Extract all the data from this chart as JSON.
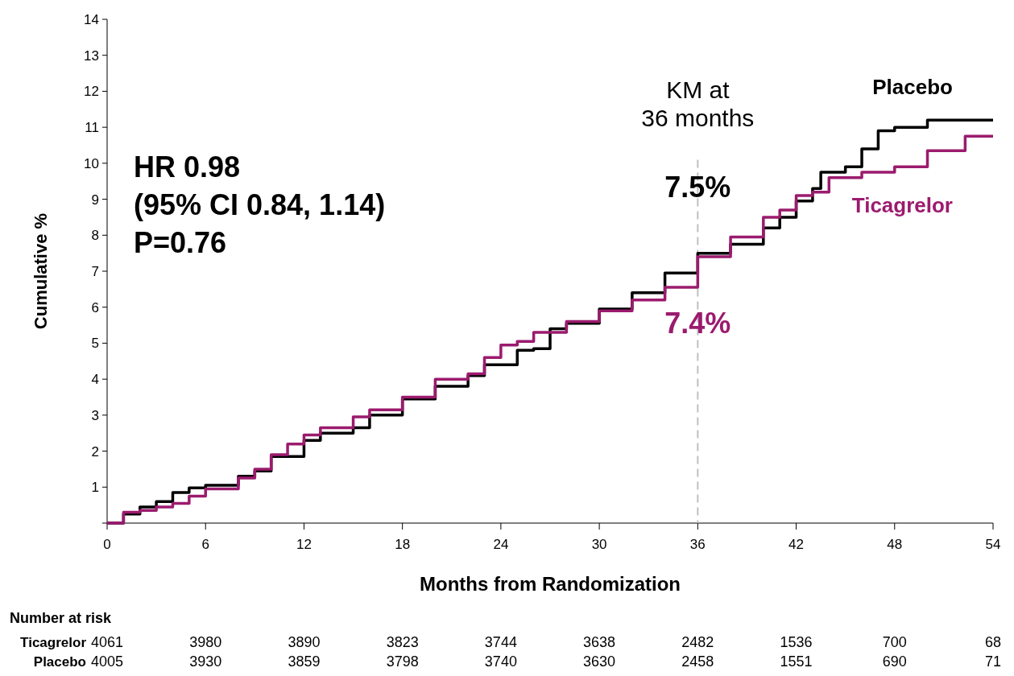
{
  "chart_data": {
    "type": "step",
    "xlabel": "Months from Randomization",
    "ylabel": "Cumulative %",
    "xlim": [
      0,
      54
    ],
    "xticks": [
      0,
      6,
      12,
      18,
      24,
      30,
      36,
      42,
      48,
      54
    ],
    "ylim": [
      0,
      14
    ],
    "yticks": [
      {
        "value": 0,
        "label": null
      },
      1,
      2,
      3,
      4,
      5,
      6,
      7,
      8,
      9,
      10,
      11,
      12,
      13,
      14
    ],
    "grid": false,
    "legend": false,
    "line_style": "solid",
    "marker": "none",
    "series": [
      {
        "name": "Placebo",
        "color": "#000000",
        "x": [
          0,
          1,
          2,
          3,
          4,
          5,
          6,
          8,
          9,
          10,
          12,
          13,
          15,
          16,
          18,
          20,
          22,
          23,
          25,
          26,
          27,
          28,
          30,
          32,
          34,
          36,
          38,
          40,
          41,
          42,
          43,
          43.5,
          45,
          46,
          47,
          48,
          50,
          54
        ],
        "values": [
          0,
          0.25,
          0.45,
          0.6,
          0.85,
          0.98,
          1.05,
          1.3,
          1.45,
          1.85,
          2.3,
          2.5,
          2.65,
          3.0,
          3.45,
          3.8,
          4.1,
          4.4,
          4.8,
          4.85,
          5.4,
          5.55,
          5.95,
          6.4,
          6.95,
          7.5,
          7.75,
          8.2,
          8.5,
          8.95,
          9.3,
          9.75,
          9.9,
          10.4,
          10.9,
          11.0,
          11.2,
          11.2
        ],
        "value_labels": [
          null,
          null,
          null,
          null,
          null,
          null,
          null,
          null,
          null,
          null,
          null,
          null,
          null,
          null,
          null,
          null,
          null,
          null,
          null,
          null,
          null,
          null,
          null,
          null,
          null,
          "7.5%",
          null,
          null,
          null,
          null,
          null,
          null,
          null,
          null,
          null,
          null,
          null,
          null
        ]
      },
      {
        "name": "Ticagrelor",
        "color": "#9b1b6e",
        "x": [
          0,
          1,
          2,
          3,
          4,
          5,
          6,
          8,
          9,
          10,
          11,
          12,
          13,
          15,
          16,
          18,
          20,
          22,
          23,
          24,
          25,
          26,
          28,
          30,
          32,
          34,
          36,
          38,
          40,
          41,
          42,
          43,
          44,
          46,
          48,
          50,
          52.3,
          54
        ],
        "values": [
          0,
          0.3,
          0.35,
          0.45,
          0.55,
          0.75,
          0.95,
          1.25,
          1.5,
          1.9,
          2.2,
          2.45,
          2.65,
          2.95,
          3.15,
          3.5,
          4.0,
          4.15,
          4.6,
          4.95,
          5.05,
          5.3,
          5.6,
          5.9,
          6.2,
          6.55,
          7.4,
          7.95,
          8.5,
          8.7,
          9.1,
          9.2,
          9.6,
          9.75,
          9.9,
          10.35,
          10.75,
          10.75
        ],
        "value_labels": [
          null,
          null,
          null,
          null,
          null,
          null,
          null,
          null,
          null,
          null,
          null,
          null,
          null,
          null,
          null,
          null,
          null,
          null,
          null,
          null,
          null,
          null,
          null,
          null,
          null,
          null,
          "7.4%",
          null,
          null,
          null,
          null,
          null,
          null,
          null,
          null,
          null,
          null,
          null
        ]
      }
    ],
    "ref_lines": [
      {
        "axis": "x",
        "value": 36,
        "label": "KM at 36 months",
        "color": "#bfbfbf",
        "line_style": "dashed"
      }
    ],
    "annotations": [
      "HR 0.98",
      "(95% CI 0.84, 1.14)",
      "P=0.76",
      "Number at risk",
      "Ticagrelor 4061 3980 3890 3823 3744 3638 2482 1536 700 68",
      "Placebo 4005 3930 3859 3798 3740 3630 2458 1551 690 71"
    ]
  }
}
